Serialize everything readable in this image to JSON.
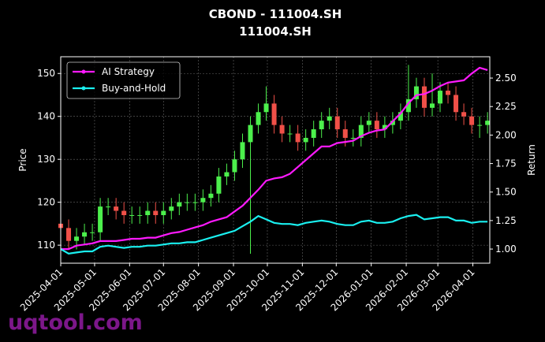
{
  "chart_data": {
    "type": "candlestick",
    "title": "CBOND - 111004.SH",
    "subtitle": "111004.SH",
    "ylabel": "Price",
    "y2label": "Return",
    "x": [
      "2025-04-01",
      "2025-04-08",
      "2025-04-15",
      "2025-04-22",
      "2025-04-29",
      "2025-05-06",
      "2025-05-13",
      "2025-05-20",
      "2025-05-27",
      "2025-06-03",
      "2025-06-10",
      "2025-06-17",
      "2025-06-24",
      "2025-07-01",
      "2025-07-08",
      "2025-07-15",
      "2025-07-22",
      "2025-07-29",
      "2025-08-05",
      "2025-08-12",
      "2025-08-19",
      "2025-08-26",
      "2025-09-02",
      "2025-09-09",
      "2025-09-16",
      "2025-09-23",
      "2025-09-30",
      "2025-10-07",
      "2025-10-14",
      "2025-10-21",
      "2025-10-28",
      "2025-11-04",
      "2025-11-11",
      "2025-11-18",
      "2025-11-25",
      "2025-12-02",
      "2025-12-09",
      "2025-12-16",
      "2025-12-23",
      "2025-12-30",
      "2026-01-06",
      "2026-01-13",
      "2026-01-20",
      "2026-01-27",
      "2026-02-03",
      "2026-02-10",
      "2026-02-17",
      "2026-02-24",
      "2026-03-03",
      "2026-03-10",
      "2026-03-17",
      "2026-03-24",
      "2026-03-31",
      "2026-04-07",
      "2026-04-14"
    ],
    "open": [
      115,
      114,
      111,
      112,
      113,
      113,
      119,
      119,
      118,
      117,
      117,
      117,
      118,
      117,
      118,
      119,
      120,
      120,
      120,
      121,
      122,
      126,
      127,
      130,
      134,
      138,
      141,
      143,
      138,
      136,
      136,
      134,
      135,
      137,
      139,
      140,
      137,
      135,
      135,
      138,
      139,
      137,
      138,
      139,
      141,
      144,
      147,
      142,
      143,
      146,
      145,
      141,
      140,
      138,
      138
    ],
    "high": [
      117,
      116,
      114,
      115,
      115,
      121,
      121,
      121,
      120,
      119,
      119,
      120,
      120,
      120,
      121,
      122,
      122,
      122,
      123,
      124,
      128,
      129,
      132,
      136,
      140,
      143,
      147,
      145,
      140,
      138,
      138,
      137,
      139,
      141,
      142,
      142,
      139,
      137,
      140,
      141,
      141,
      140,
      141,
      143,
      152,
      149,
      149,
      150,
      148,
      148,
      147,
      143,
      142,
      140,
      141
    ],
    "low": [
      112,
      109,
      109,
      110,
      111,
      111,
      117,
      116,
      115,
      115,
      115,
      115,
      115,
      115,
      116,
      117,
      118,
      118,
      118,
      119,
      120,
      124,
      125,
      128,
      108,
      136,
      139,
      136,
      134,
      134,
      132,
      132,
      133,
      135,
      137,
      135,
      133,
      133,
      133,
      136,
      135,
      135,
      136,
      137,
      139,
      142,
      140,
      140,
      141,
      143,
      139,
      138,
      136,
      135,
      136
    ],
    "close": [
      114,
      111,
      112,
      113,
      113,
      119,
      119,
      118,
      117,
      117,
      117,
      118,
      117,
      118,
      119,
      120,
      120,
      120,
      121,
      122,
      126,
      127,
      130,
      134,
      138,
      141,
      143,
      138,
      136,
      136,
      134,
      135,
      137,
      139,
      140,
      137,
      135,
      135,
      138,
      139,
      137,
      138,
      139,
      141,
      144,
      147,
      142,
      143,
      146,
      145,
      141,
      140,
      138,
      138,
      139
    ],
    "up_color": "#4cf04c",
    "down_color": "#f05048",
    "series": [
      {
        "name": "AI Strategy",
        "color": "#ff1aff",
        "axis": "y2",
        "values": [
          1.0,
          1.0,
          1.03,
          1.04,
          1.05,
          1.07,
          1.07,
          1.07,
          1.08,
          1.09,
          1.09,
          1.1,
          1.1,
          1.12,
          1.14,
          1.15,
          1.17,
          1.19,
          1.21,
          1.24,
          1.26,
          1.28,
          1.33,
          1.38,
          1.45,
          1.52,
          1.6,
          1.62,
          1.63,
          1.66,
          1.72,
          1.78,
          1.84,
          1.9,
          1.9,
          1.93,
          1.94,
          1.95,
          1.99,
          2.02,
          2.04,
          2.05,
          2.12,
          2.19,
          2.28,
          2.35,
          2.36,
          2.39,
          2.43,
          2.46,
          2.47,
          2.48,
          2.54,
          2.59,
          2.57
        ]
      },
      {
        "name": "Buy-and-Hold",
        "color": "#1af0f0",
        "axis": "y2",
        "values": [
          1.0,
          0.96,
          0.97,
          0.98,
          0.98,
          1.02,
          1.03,
          1.02,
          1.01,
          1.02,
          1.02,
          1.03,
          1.03,
          1.04,
          1.05,
          1.05,
          1.06,
          1.06,
          1.08,
          1.1,
          1.12,
          1.14,
          1.16,
          1.2,
          1.24,
          1.29,
          1.26,
          1.23,
          1.22,
          1.22,
          1.21,
          1.23,
          1.24,
          1.25,
          1.24,
          1.22,
          1.21,
          1.21,
          1.24,
          1.25,
          1.23,
          1.23,
          1.24,
          1.27,
          1.29,
          1.3,
          1.26,
          1.27,
          1.28,
          1.28,
          1.25,
          1.25,
          1.23,
          1.24,
          1.24
        ]
      }
    ],
    "xlim": [
      "2025-04-01",
      "2026-04-16"
    ],
    "xticks": [
      "2025-04-01",
      "2025-05-01",
      "2025-06-01",
      "2025-07-01",
      "2025-08-01",
      "2025-09-01",
      "2025-10-01",
      "2025-11-01",
      "2025-12-01",
      "2026-01-01",
      "2026-02-01",
      "2026-03-01",
      "2026-04-01"
    ],
    "ylim": [
      105.8,
      153.9
    ],
    "yticks": [
      110,
      120,
      130,
      140,
      150
    ],
    "y2lim": [
      0.876,
      2.687
    ],
    "y2ticks": [
      {
        "value": 1.0,
        "label": "1.00"
      },
      {
        "value": 1.25,
        "label": "1.25"
      },
      {
        "value": 1.5,
        "label": "1.50"
      },
      {
        "value": 1.75,
        "label": "1.75"
      },
      {
        "value": 2.0,
        "label": "2.00"
      },
      {
        "value": 2.25,
        "label": "2.25"
      },
      {
        "value": 2.5,
        "label": "2.50"
      }
    ],
    "grid": true,
    "legend": "upper left"
  },
  "watermark": "uqtool.com"
}
